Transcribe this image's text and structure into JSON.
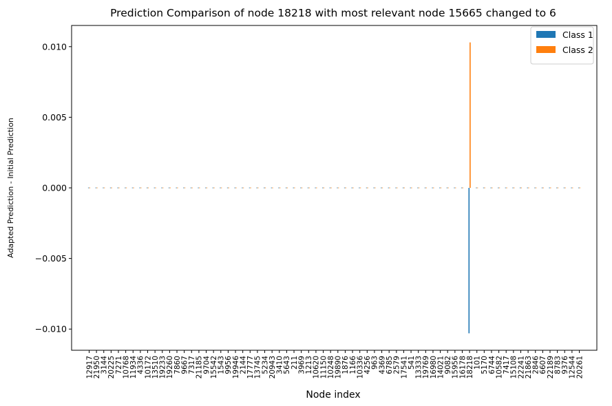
{
  "chart_data": {
    "type": "bar",
    "title": "Prediction Comparison of node 18218 with most relevant node 15665 changed to 6",
    "xlabel": "Node index",
    "ylabel": "Adapted Prediction - Initial Prediction",
    "ylim": [
      -0.0115,
      0.0115
    ],
    "yticks": [
      -0.01,
      -0.005,
      0.0,
      0.005,
      0.01
    ],
    "ytick_labels": [
      "−0.010",
      "−0.005",
      "0.000",
      "0.005",
      "0.010"
    ],
    "grid": false,
    "legend_position": "top-right",
    "categories": [
      "12917",
      "21950",
      "3144",
      "20225",
      "7271",
      "10768",
      "11934",
      "4336",
      "10172",
      "13510",
      "19233",
      "19260",
      "7860",
      "9667",
      "7317",
      "21185",
      "9704",
      "15542",
      "1543",
      "9956",
      "19946",
      "2144",
      "17777",
      "13745",
      "5234",
      "20943",
      "3410",
      "5643",
      "211",
      "3969",
      "1213",
      "10620",
      "11150",
      "10248",
      "19890",
      "1876",
      "1166",
      "10336",
      "4256",
      "963",
      "4369",
      "6785",
      "2579",
      "17541",
      "541",
      "13333",
      "19769",
      "16980",
      "14021",
      "9082",
      "15956",
      "16178",
      "18218",
      "101",
      "5170",
      "6744",
      "10582",
      "7417",
      "15108",
      "22241",
      "21863",
      "2846",
      "6607",
      "22189",
      "8783",
      "9376",
      "12544",
      "20261"
    ],
    "series": [
      {
        "name": "Class 1",
        "color": "#1f77b4",
        "values": [
          0,
          0,
          0,
          0,
          0,
          0,
          0,
          0,
          0,
          0,
          0,
          0,
          0,
          0,
          0,
          0,
          0,
          0,
          0,
          0,
          0,
          0,
          0,
          0,
          0,
          0,
          0,
          0,
          0,
          0,
          0,
          0,
          0,
          0,
          0,
          0,
          0,
          0,
          0,
          0,
          0,
          0,
          0,
          0,
          0,
          0,
          0,
          0,
          0,
          0,
          0,
          0,
          -0.0103,
          0,
          0,
          0,
          0,
          0,
          0,
          0,
          0,
          0,
          0,
          0,
          0,
          0,
          0,
          0
        ]
      },
      {
        "name": "Class 2",
        "color": "#ff7f0e",
        "values": [
          0,
          0,
          0,
          0,
          0,
          0,
          0,
          0,
          0,
          0,
          0,
          0,
          0,
          0,
          0,
          0,
          0,
          0,
          0,
          0,
          0,
          0,
          0,
          0,
          0,
          0,
          0,
          0,
          0,
          0,
          0,
          0,
          0,
          0,
          0,
          0,
          0,
          0,
          0,
          0,
          0,
          0,
          0,
          0,
          0,
          0,
          0,
          0,
          0,
          0,
          0,
          0,
          0.0103,
          0,
          0,
          0,
          0,
          0,
          0,
          0,
          0,
          0,
          0,
          0,
          0,
          0,
          0,
          0
        ]
      }
    ]
  }
}
